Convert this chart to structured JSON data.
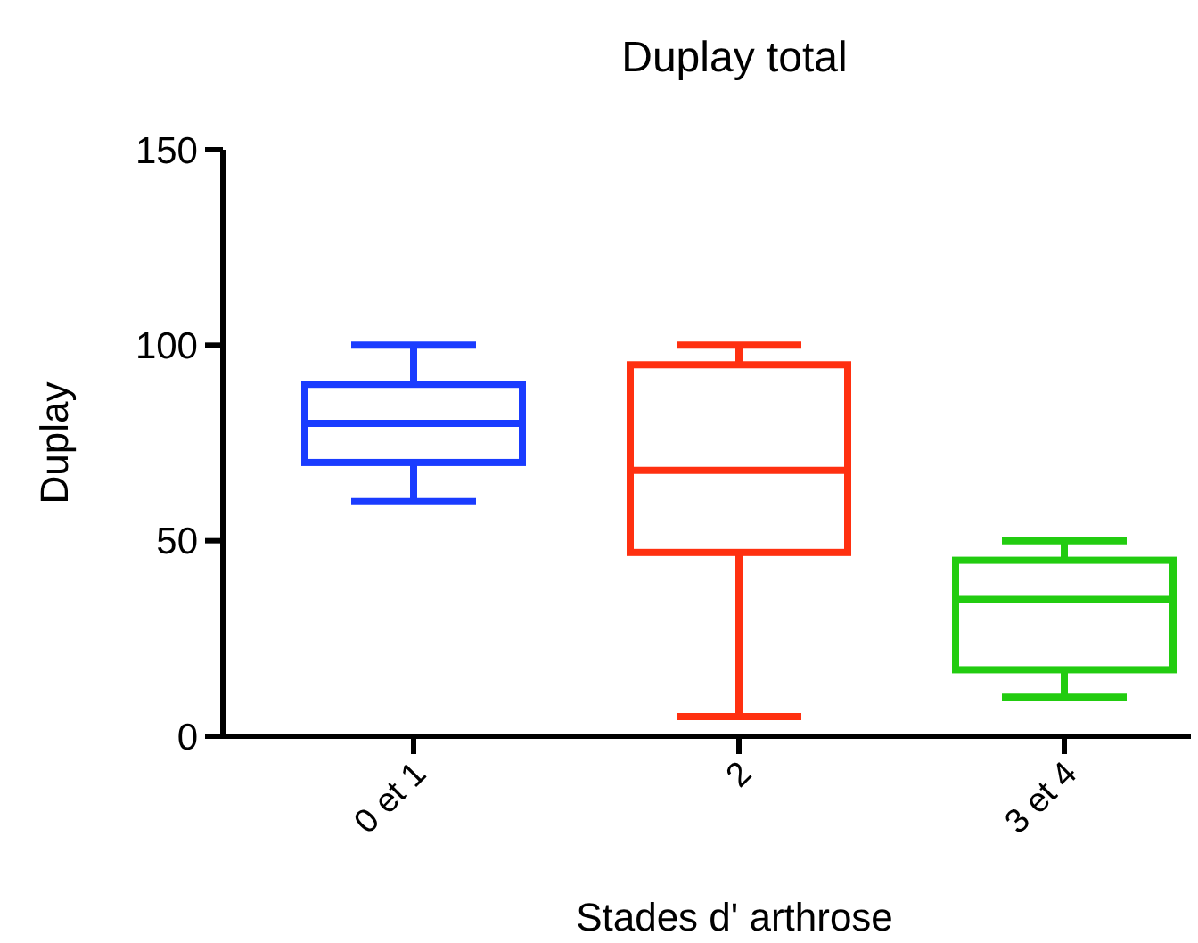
{
  "chart_data": {
    "type": "box",
    "title": "Duplay total",
    "xlabel": "Stades d' arthrose",
    "ylabel": "Duplay",
    "categories": [
      "0 et 1",
      "2",
      "3 et 4"
    ],
    "colors": [
      "#1a3cff",
      "#ff3010",
      "#22cc10"
    ],
    "boxes": [
      {
        "low": 60,
        "q1": 70,
        "median": 80,
        "q3": 90,
        "high": 100
      },
      {
        "low": 5,
        "q1": 47,
        "median": 68,
        "q3": 95,
        "high": 100
      },
      {
        "low": 10,
        "q1": 17,
        "median": 35,
        "q3": 45,
        "high": 50
      }
    ],
    "ylim": [
      0,
      150
    ],
    "yticks": [
      0,
      50,
      100,
      150
    ],
    "grid": false
  }
}
